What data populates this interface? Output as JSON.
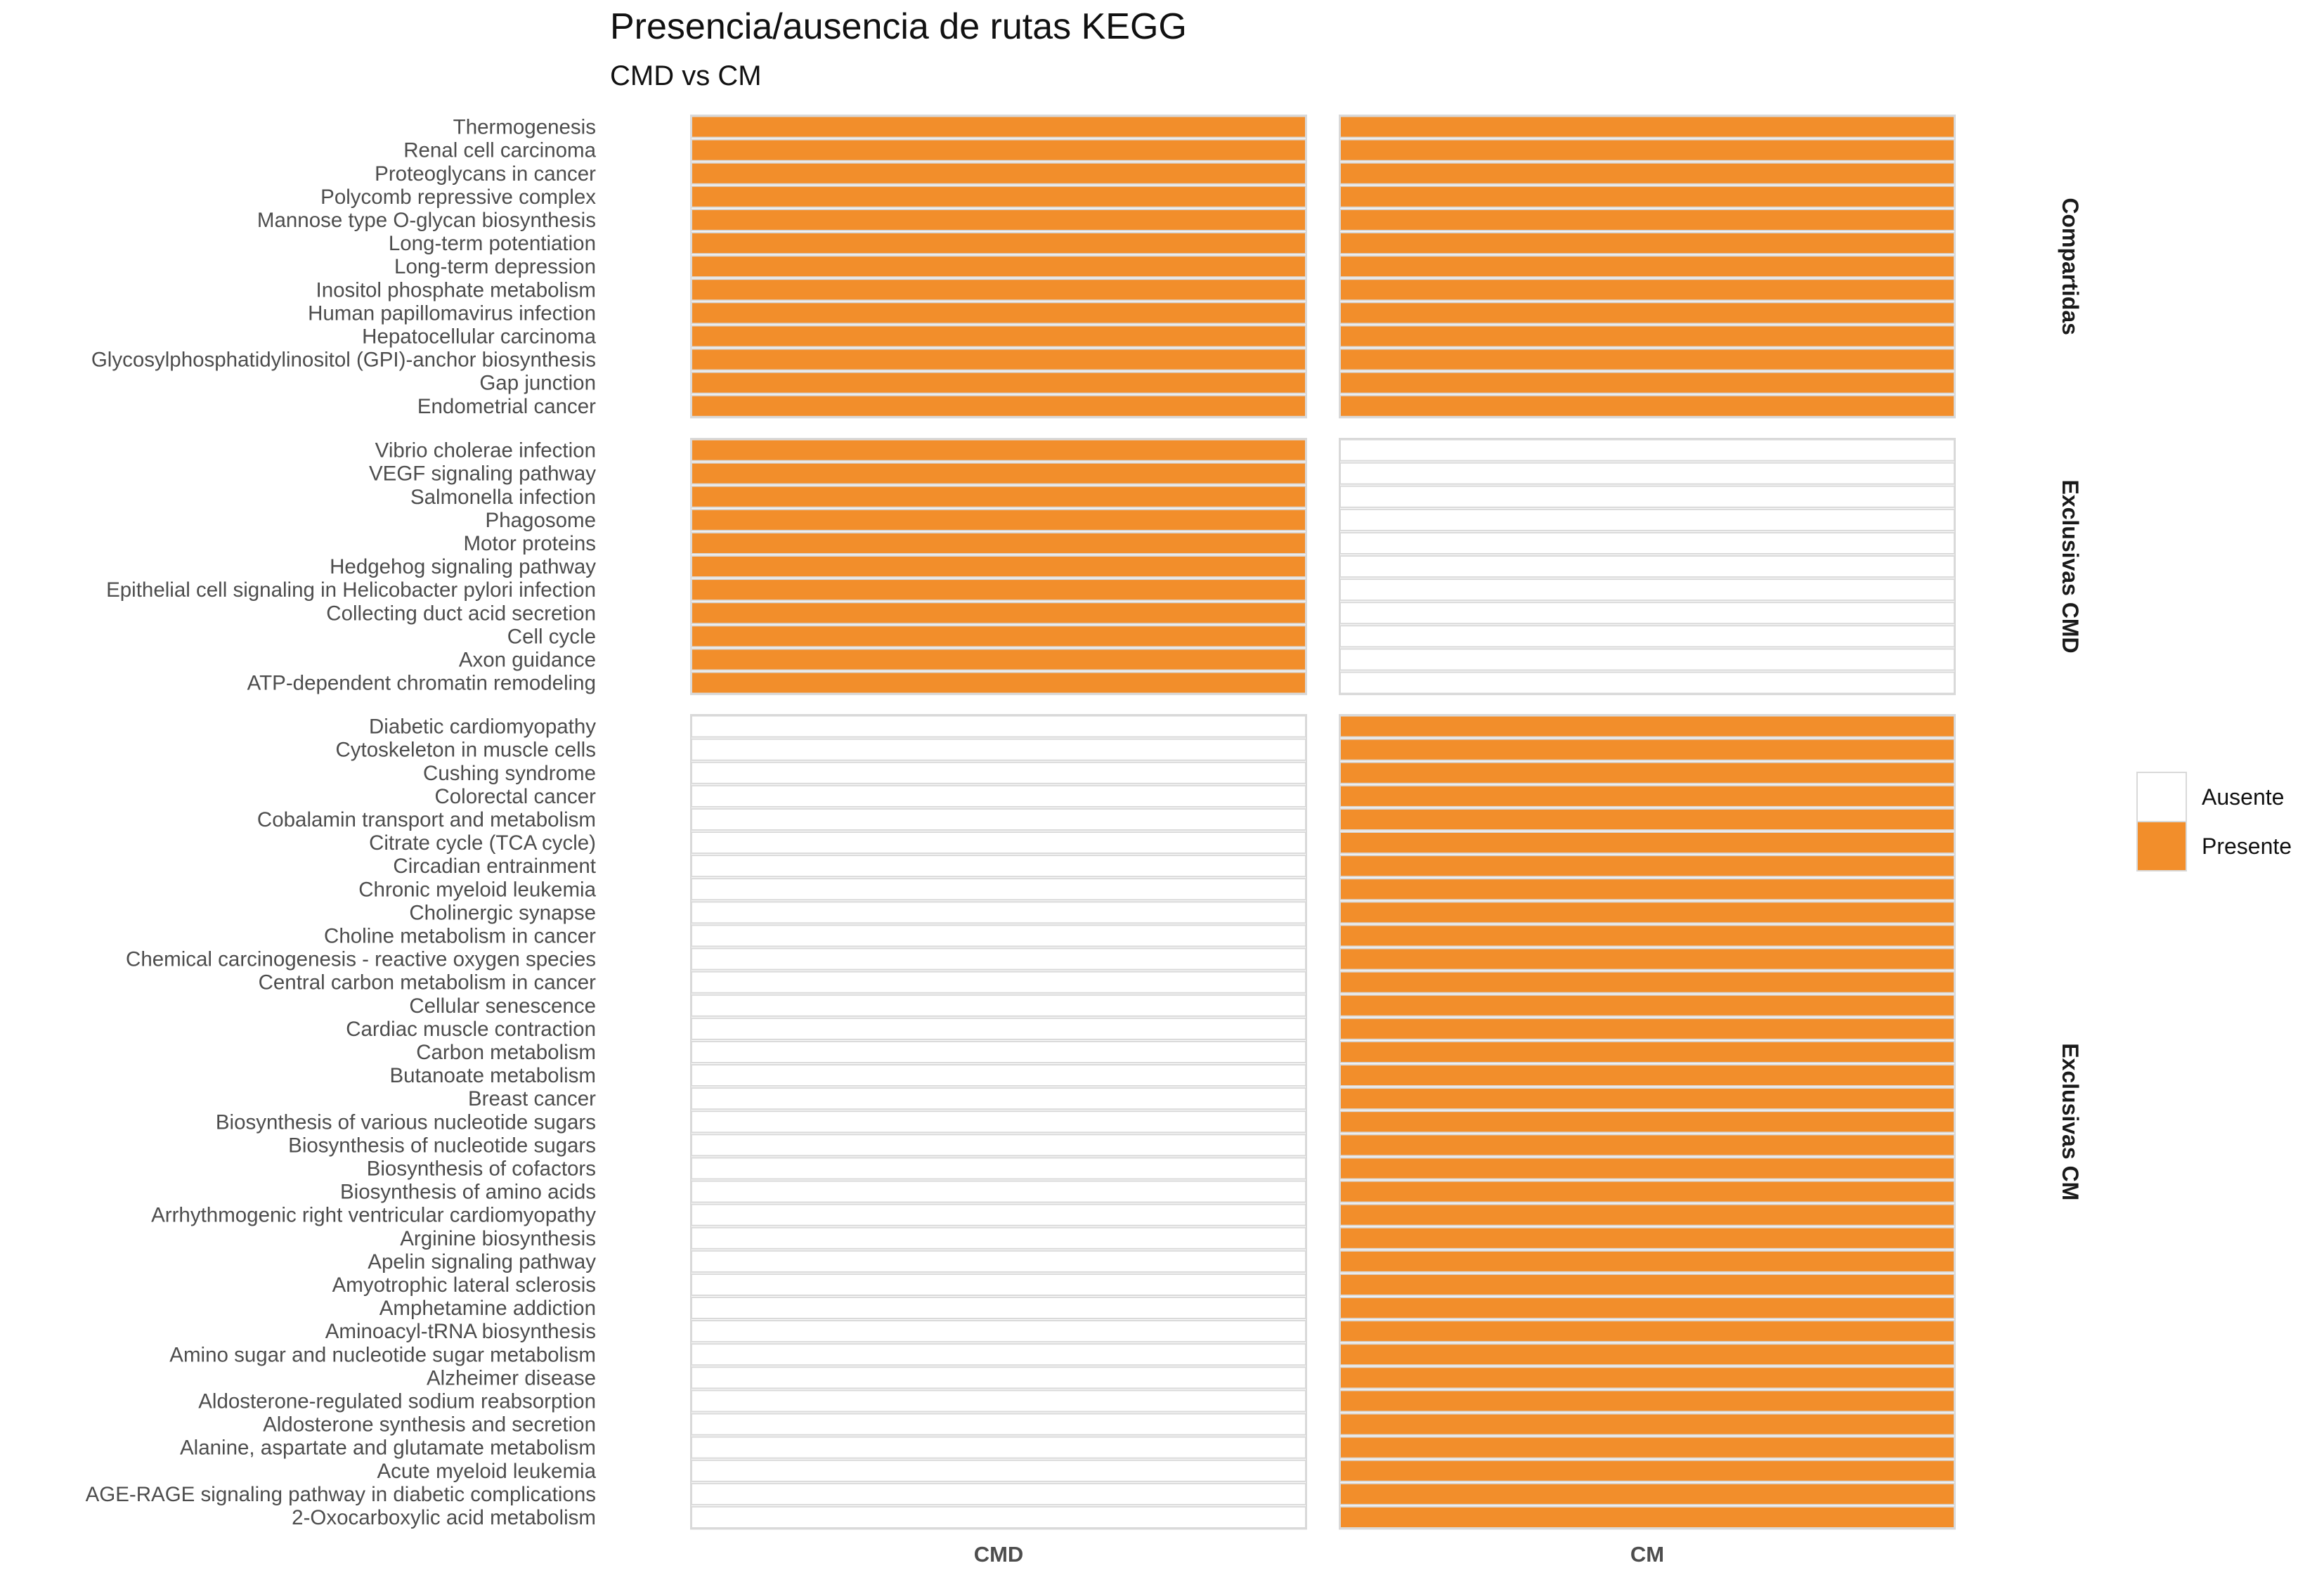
{
  "chart_data": {
    "type": "heatmap",
    "title": "Presencia/ausencia de rutas KEGG",
    "subtitle": "CMD vs CM",
    "columns": [
      "CMD",
      "CM"
    ],
    "legend": {
      "position": "right",
      "items": [
        {
          "label": "Ausente",
          "color": "#FFFFFF"
        },
        {
          "label": "Presente",
          "color": "#F28E2B"
        }
      ]
    },
    "colors": {
      "present": "#F28E2B",
      "absent": "#FFFFFF",
      "tile_border": "#D9D9D9"
    },
    "grid": false,
    "facets": [
      {
        "label": "Compartidas",
        "presence": [
          1,
          1
        ],
        "rows": [
          "Thermogenesis",
          "Renal cell carcinoma",
          "Proteoglycans in cancer",
          "Polycomb repressive complex",
          "Mannose type O-glycan biosynthesis",
          "Long-term potentiation",
          "Long-term depression",
          "Inositol phosphate metabolism",
          "Human papillomavirus infection",
          "Hepatocellular carcinoma",
          "Glycosylphosphatidylinositol (GPI)-anchor biosynthesis",
          "Gap junction",
          "Endometrial cancer"
        ]
      },
      {
        "label": "Exclusivas CMD",
        "presence": [
          1,
          0
        ],
        "rows": [
          "Vibrio cholerae infection",
          "VEGF signaling pathway",
          "Salmonella infection",
          "Phagosome",
          "Motor proteins",
          "Hedgehog signaling pathway",
          "Epithelial cell signaling in Helicobacter pylori infection",
          "Collecting duct acid secretion",
          "Cell cycle",
          "Axon guidance",
          "ATP-dependent chromatin remodeling"
        ]
      },
      {
        "label": "Exclusivas CM",
        "presence": [
          0,
          1
        ],
        "rows": [
          "Diabetic cardiomyopathy",
          "Cytoskeleton in muscle cells",
          "Cushing syndrome",
          "Colorectal cancer",
          "Cobalamin transport and metabolism",
          "Citrate cycle (TCA cycle)",
          "Circadian entrainment",
          "Chronic myeloid leukemia",
          "Cholinergic synapse",
          "Choline metabolism in cancer",
          "Chemical carcinogenesis - reactive oxygen species",
          "Central carbon metabolism in cancer",
          "Cellular senescence",
          "Cardiac muscle contraction",
          "Carbon metabolism",
          "Butanoate metabolism",
          "Breast cancer",
          "Biosynthesis of various nucleotide sugars",
          "Biosynthesis of nucleotide sugars",
          "Biosynthesis of cofactors",
          "Biosynthesis of amino acids",
          "Arrhythmogenic right ventricular cardiomyopathy",
          "Arginine biosynthesis",
          "Apelin signaling pathway",
          "Amyotrophic lateral sclerosis",
          "Amphetamine addiction",
          "Aminoacyl-tRNA biosynthesis",
          "Amino sugar and nucleotide sugar metabolism",
          "Alzheimer disease",
          "Aldosterone-regulated sodium reabsorption",
          "Aldosterone synthesis and secretion",
          "Alanine, aspartate and glutamate metabolism",
          "Acute myeloid leukemia",
          "AGE-RAGE signaling pathway in diabetic complications",
          "2-Oxocarboxylic acid metabolism"
        ]
      }
    ]
  }
}
